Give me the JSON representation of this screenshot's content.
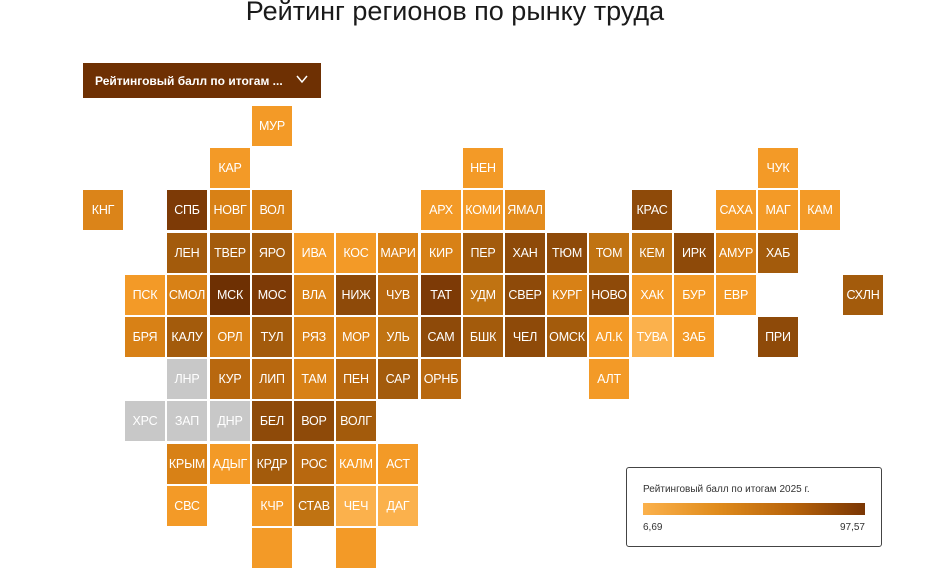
{
  "title": "Рейтинг регионов по рынку труда",
  "dropdown": {
    "label": "Рейтинговый балл по итогам ..."
  },
  "legend": {
    "title": "Рейтинговый балл по итогам 2025 г.",
    "min": "6,69",
    "max": "97,57"
  },
  "colors": {
    "gray": "#c8c8c8",
    "brand": "#6e3003"
  },
  "tiles": [
    {
      "label": "МУР",
      "row": 0,
      "col": 4,
      "color": "#f39a27"
    },
    {
      "label": "КАР",
      "row": 1,
      "col": 3,
      "color": "#f39a27"
    },
    {
      "label": "НЕН",
      "row": 1,
      "col": 9,
      "color": "#f39a27"
    },
    {
      "label": "ЧУК",
      "row": 1,
      "col": 16,
      "color": "#f39a27"
    },
    {
      "label": "КНГ",
      "row": 2,
      "col": 0,
      "color": "#db8419"
    },
    {
      "label": "СПБ",
      "row": 2,
      "col": 2,
      "color": "#7d3a06"
    },
    {
      "label": "НОВГ",
      "row": 2,
      "col": 3,
      "color": "#d88116"
    },
    {
      "label": "ВОЛ",
      "row": 2,
      "col": 4,
      "color": "#d88116"
    },
    {
      "label": "АРХ",
      "row": 2,
      "col": 8,
      "color": "#f39a27"
    },
    {
      "label": "КОМИ",
      "row": 2,
      "col": 9,
      "color": "#f39a27"
    },
    {
      "label": "ЯМАЛ",
      "row": 2,
      "col": 10,
      "color": "#e38c1e"
    },
    {
      "label": "КРАС",
      "row": 2,
      "col": 13,
      "color": "#8e4a09"
    },
    {
      "label": "САХА",
      "row": 2,
      "col": 15,
      "color": "#f39a27"
    },
    {
      "label": "МАГ",
      "row": 2,
      "col": 16,
      "color": "#f39a27"
    },
    {
      "label": "КАМ",
      "row": 2,
      "col": 17,
      "color": "#f39a27"
    },
    {
      "label": "ЛЕН",
      "row": 3,
      "col": 2,
      "color": "#a35b0c"
    },
    {
      "label": "ТВЕР",
      "row": 3,
      "col": 3,
      "color": "#a35b0c"
    },
    {
      "label": "ЯРО",
      "row": 3,
      "col": 4,
      "color": "#a35b0c"
    },
    {
      "label": "ИВА",
      "row": 3,
      "col": 5,
      "color": "#f39a27"
    },
    {
      "label": "КОС",
      "row": 3,
      "col": 6,
      "color": "#f39a27"
    },
    {
      "label": "МАРИ",
      "row": 3,
      "col": 7,
      "color": "#d88116"
    },
    {
      "label": "КИР",
      "row": 3,
      "col": 8,
      "color": "#d88116"
    },
    {
      "label": "ПЕР",
      "row": 3,
      "col": 9,
      "color": "#a35b0c"
    },
    {
      "label": "ХАН",
      "row": 3,
      "col": 10,
      "color": "#8e4a09"
    },
    {
      "label": "ТЮМ",
      "row": 3,
      "col": 11,
      "color": "#8e4a09"
    },
    {
      "label": "ТОМ",
      "row": 3,
      "col": 12,
      "color": "#c07312"
    },
    {
      "label": "КЕМ",
      "row": 3,
      "col": 13,
      "color": "#c07312"
    },
    {
      "label": "ИРК",
      "row": 3,
      "col": 14,
      "color": "#8e4a09"
    },
    {
      "label": "АМУР",
      "row": 3,
      "col": 15,
      "color": "#d88116"
    },
    {
      "label": "ХАБ",
      "row": 3,
      "col": 16,
      "color": "#a35b0c"
    },
    {
      "label": "ПСК",
      "row": 4,
      "col": 1,
      "color": "#f39a27"
    },
    {
      "label": "СМОЛ",
      "row": 4,
      "col": 2,
      "color": "#d88116"
    },
    {
      "label": "МСК",
      "row": 4,
      "col": 3,
      "color": "#6e3003"
    },
    {
      "label": "МОС",
      "row": 4,
      "col": 4,
      "color": "#7d3a06"
    },
    {
      "label": "ВЛА",
      "row": 4,
      "col": 5,
      "color": "#d88116"
    },
    {
      "label": "НИЖ",
      "row": 4,
      "col": 6,
      "color": "#8e4a09"
    },
    {
      "label": "ЧУВ",
      "row": 4,
      "col": 7,
      "color": "#b8680f"
    },
    {
      "label": "ТАТ",
      "row": 4,
      "col": 8,
      "color": "#7d3a06"
    },
    {
      "label": "УДМ",
      "row": 4,
      "col": 9,
      "color": "#c07312"
    },
    {
      "label": "СВЕР",
      "row": 4,
      "col": 10,
      "color": "#8e4a09"
    },
    {
      "label": "КУРГ",
      "row": 4,
      "col": 11,
      "color": "#d88116"
    },
    {
      "label": "НОВО",
      "row": 4,
      "col": 12,
      "color": "#8e4a09"
    },
    {
      "label": "ХАК",
      "row": 4,
      "col": 13,
      "color": "#f39a27"
    },
    {
      "label": "БУР",
      "row": 4,
      "col": 14,
      "color": "#f39a27"
    },
    {
      "label": "ЕВР",
      "row": 4,
      "col": 15,
      "color": "#f39a27"
    },
    {
      "label": "СХЛН",
      "row": 4,
      "col": 18,
      "color": "#a35b0c"
    },
    {
      "label": "БРЯ",
      "row": 5,
      "col": 1,
      "color": "#d88116"
    },
    {
      "label": "КАЛУ",
      "row": 5,
      "col": 2,
      "color": "#a35b0c"
    },
    {
      "label": "ОРЛ",
      "row": 5,
      "col": 3,
      "color": "#d88116"
    },
    {
      "label": "ТУЛ",
      "row": 5,
      "col": 4,
      "color": "#a35b0c"
    },
    {
      "label": "РЯЗ",
      "row": 5,
      "col": 5,
      "color": "#d88116"
    },
    {
      "label": "МОР",
      "row": 5,
      "col": 6,
      "color": "#d88116"
    },
    {
      "label": "УЛЬ",
      "row": 5,
      "col": 7,
      "color": "#c07312"
    },
    {
      "label": "САМ",
      "row": 5,
      "col": 8,
      "color": "#8e4a09"
    },
    {
      "label": "БШК",
      "row": 5,
      "col": 9,
      "color": "#a35b0c"
    },
    {
      "label": "ЧЕЛ",
      "row": 5,
      "col": 10,
      "color": "#8e4a09"
    },
    {
      "label": "ОМСК",
      "row": 5,
      "col": 11,
      "color": "#a35b0c"
    },
    {
      "label": "АЛ.К",
      "row": 5,
      "col": 12,
      "color": "#f39a27"
    },
    {
      "label": "ТУВА",
      "row": 5,
      "col": 13,
      "color": "#fbb14c"
    },
    {
      "label": "ЗАБ",
      "row": 5,
      "col": 14,
      "color": "#f39a27"
    },
    {
      "label": "ПРИ",
      "row": 5,
      "col": 16,
      "color": "#8e4a09"
    },
    {
      "label": "ЛНР",
      "row": 6,
      "col": 2,
      "color": "#c8c8c8"
    },
    {
      "label": "КУР",
      "row": 6,
      "col": 3,
      "color": "#b8680f"
    },
    {
      "label": "ЛИП",
      "row": 6,
      "col": 4,
      "color": "#b8680f"
    },
    {
      "label": "ТАМ",
      "row": 6,
      "col": 5,
      "color": "#d88116"
    },
    {
      "label": "ПЕН",
      "row": 6,
      "col": 6,
      "color": "#b8680f"
    },
    {
      "label": "САР",
      "row": 6,
      "col": 7,
      "color": "#a35b0c"
    },
    {
      "label": "ОРНБ",
      "row": 6,
      "col": 8,
      "color": "#b8680f"
    },
    {
      "label": "АЛТ",
      "row": 6,
      "col": 12,
      "color": "#f39a27"
    },
    {
      "label": "ХРС",
      "row": 7,
      "col": 1,
      "color": "#c8c8c8"
    },
    {
      "label": "ЗАП",
      "row": 7,
      "col": 2,
      "color": "#c8c8c8"
    },
    {
      "label": "ДНР",
      "row": 7,
      "col": 3,
      "color": "#c8c8c8"
    },
    {
      "label": "БЕЛ",
      "row": 7,
      "col": 4,
      "color": "#8e4a09"
    },
    {
      "label": "ВОР",
      "row": 7,
      "col": 5,
      "color": "#8e4a09"
    },
    {
      "label": "ВОЛГ",
      "row": 7,
      "col": 6,
      "color": "#a35b0c"
    },
    {
      "label": "КРЫМ",
      "row": 8,
      "col": 2,
      "color": "#d88116"
    },
    {
      "label": "АДЫГ",
      "row": 8,
      "col": 3,
      "color": "#f39a27"
    },
    {
      "label": "КРДР",
      "row": 8,
      "col": 4,
      "color": "#a35b0c"
    },
    {
      "label": "РОС",
      "row": 8,
      "col": 5,
      "color": "#b8680f"
    },
    {
      "label": "КАЛМ",
      "row": 8,
      "col": 6,
      "color": "#f39a27"
    },
    {
      "label": "АСТ",
      "row": 8,
      "col": 7,
      "color": "#f39a27"
    },
    {
      "label": "СВС",
      "row": 9,
      "col": 2,
      "color": "#f39a27"
    },
    {
      "label": "КЧР",
      "row": 9,
      "col": 4,
      "color": "#f39a27"
    },
    {
      "label": "СТАВ",
      "row": 9,
      "col": 5,
      "color": "#c07312"
    },
    {
      "label": "ЧЕЧ",
      "row": 9,
      "col": 6,
      "color": "#fbb14c"
    },
    {
      "label": "ДАГ",
      "row": 9,
      "col": 7,
      "color": "#fbb14c"
    },
    {
      "label": "",
      "row": 10,
      "col": 4,
      "color": "#f39a27"
    },
    {
      "label": "",
      "row": 10,
      "col": 6,
      "color": "#f39a27"
    }
  ]
}
